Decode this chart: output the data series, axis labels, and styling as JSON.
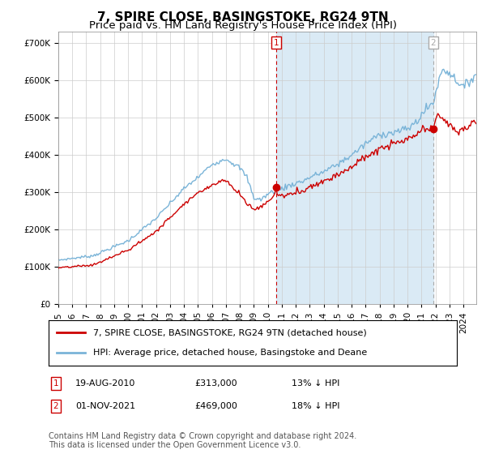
{
  "title": "7, SPIRE CLOSE, BASINGSTOKE, RG24 9TN",
  "subtitle": "Price paid vs. HM Land Registry's House Price Index (HPI)",
  "ylim": [
    0,
    730000
  ],
  "yticks": [
    0,
    100000,
    200000,
    300000,
    400000,
    500000,
    600000,
    700000
  ],
  "hpi_color": "#7ab4d8",
  "hpi_fill_color": "#daeaf5",
  "price_color": "#cc0000",
  "marker1_vline_color": "#cc0000",
  "marker2_vline_color": "#aaaaaa",
  "grid_color": "#cccccc",
  "background_color": "#ffffff",
  "legend_label_price": "7, SPIRE CLOSE, BASINGSTOKE, RG24 9TN (detached house)",
  "legend_label_hpi": "HPI: Average price, detached house, Basingstoke and Deane",
  "marker1_date_str": "19-AUG-2010",
  "marker1_price": "£313,000",
  "marker1_pct": "13% ↓ HPI",
  "marker1_price_val": 313000,
  "marker2_date_str": "01-NOV-2021",
  "marker2_price": "£469,000",
  "marker2_pct": "18% ↓ HPI",
  "marker2_price_val": 469000,
  "footer": "Contains HM Land Registry data © Crown copyright and database right 2024.\nThis data is licensed under the Open Government Licence v3.0.",
  "title_fontsize": 11,
  "subtitle_fontsize": 9.5,
  "tick_fontsize": 7.5,
  "legend_fontsize": 8,
  "footer_fontsize": 7,
  "annot_fontsize": 8
}
